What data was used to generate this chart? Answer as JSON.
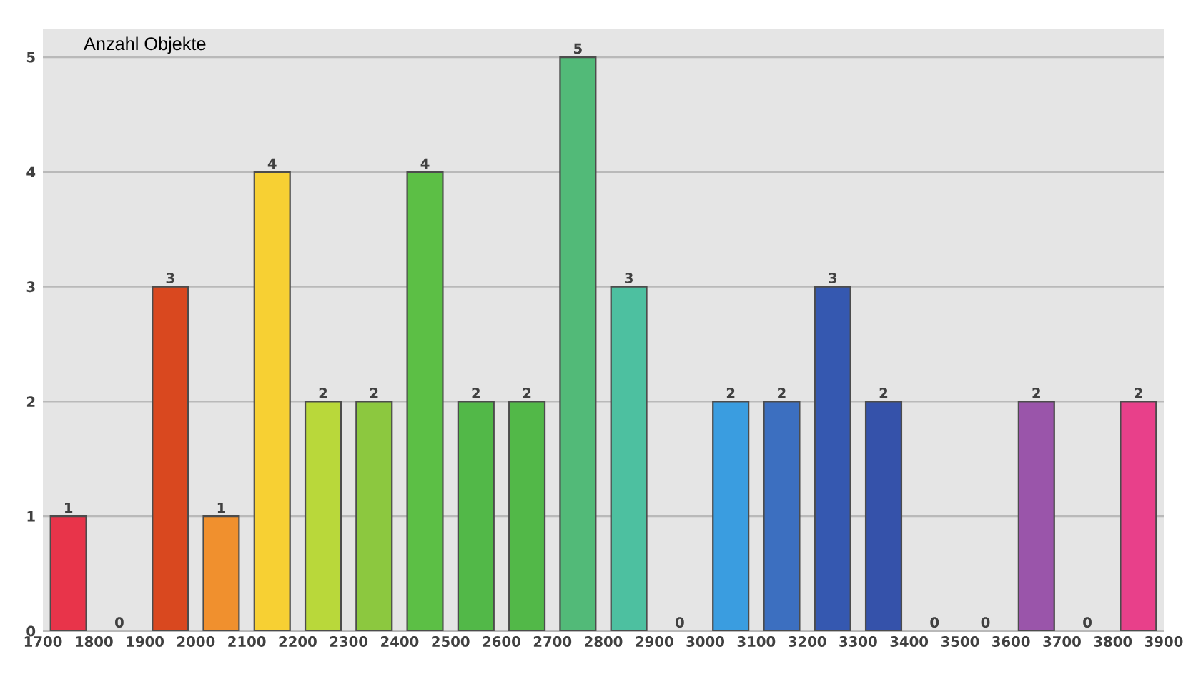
{
  "chart_data": {
    "type": "histogram",
    "ylabel": "Anzahl Objekte",
    "bins": [
      1700,
      1800,
      1900,
      2000,
      2100,
      2200,
      2300,
      2400,
      2500,
      2600,
      2700,
      2800,
      2900,
      3000,
      3100,
      3200,
      3300,
      3400,
      3500,
      3600,
      3700,
      3800,
      3900
    ],
    "values": [
      1,
      0,
      3,
      1,
      4,
      2,
      2,
      4,
      2,
      2,
      5,
      3,
      0,
      2,
      2,
      3,
      2,
      0,
      0,
      2,
      0,
      2
    ],
    "colors": [
      "#e8344a",
      null,
      "#d9481f",
      "#f0902e",
      "#f7d033",
      "#b9d83a",
      "#8cc83f",
      "#5cbf45",
      "#52b848",
      "#52b848",
      "#52ba78",
      "#4dc0a0",
      null,
      "#3a9de0",
      "#3c6fc0",
      "#3558b0",
      "#3552aa",
      null,
      null,
      "#9a55aa",
      null,
      "#e8408a"
    ],
    "xlim": [
      1700,
      3900
    ],
    "xticks": [
      1700,
      1800,
      1900,
      2000,
      2100,
      2200,
      2300,
      2400,
      2500,
      2600,
      2700,
      2800,
      2900,
      3000,
      3100,
      3200,
      3300,
      3400,
      3500,
      3600,
      3700,
      3800,
      3900
    ],
    "ylim": [
      0,
      5.25
    ],
    "yticks": [
      0,
      1,
      2,
      3,
      4,
      5
    ],
    "grid": "y",
    "data_labels": true
  }
}
